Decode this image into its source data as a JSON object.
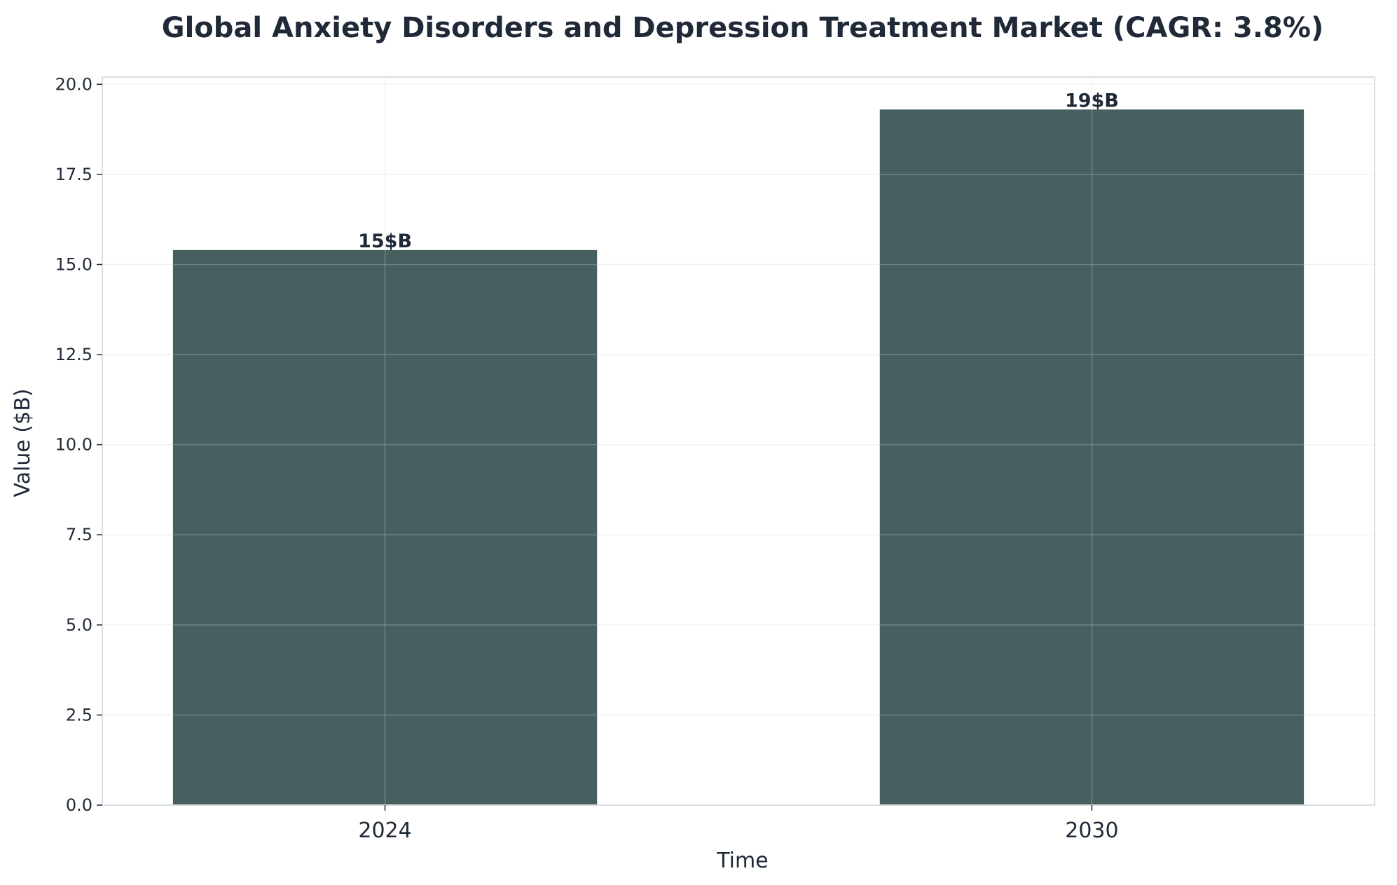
{
  "chart_data": {
    "type": "bar",
    "title": "Global Anxiety Disorders and Depression Treatment Market (CAGR: 3.8%)",
    "xlabel": "Time",
    "ylabel": "Value ($B)",
    "categories": [
      "2024",
      "2030"
    ],
    "values": [
      15.4,
      19.3
    ],
    "value_labels": [
      "15$B",
      "19$B"
    ],
    "ylim": [
      0,
      20.2
    ],
    "yticks": [
      0,
      2.5,
      5,
      7.5,
      10,
      12.5,
      15,
      17.5,
      20
    ],
    "ytick_labels": [
      "0.0",
      "2.5",
      "5.0",
      "7.5",
      "10.0",
      "12.5",
      "15.0",
      "17.5",
      "20.0"
    ],
    "grid": true,
    "colors": {
      "bar": "#475f5f",
      "text": "#1f2937",
      "grid": "#eef2f5",
      "axis": "#d9dee5"
    }
  }
}
